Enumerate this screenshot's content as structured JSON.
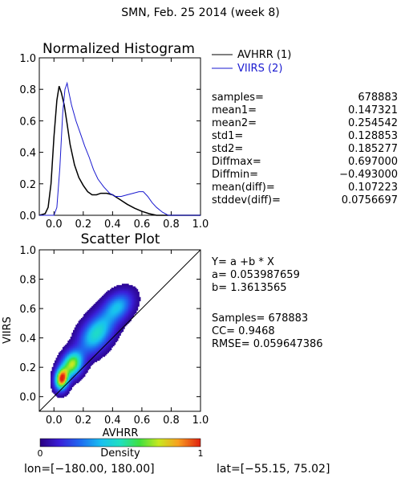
{
  "title": "SMN,  Feb. 25 2014 (week 8)",
  "colors": {
    "avhrr": "#000000",
    "viirs": "#1a1ad0",
    "text": "#000000"
  },
  "chart_data": [
    {
      "type": "line",
      "title": "Normalized Histogram",
      "xlim": [
        -0.1,
        1.0
      ],
      "ylim": [
        0.0,
        1.0
      ],
      "xticks": [
        "0.0",
        "0.2",
        "0.4",
        "0.6",
        "0.8",
        "1.0"
      ],
      "yticks": [
        "0.0",
        "0.2",
        "0.4",
        "0.6",
        "0.8",
        "1.0"
      ],
      "series": [
        {
          "name": "AVHRR (1)",
          "color": "#000000",
          "points": [
            [
              -0.1,
              0.0
            ],
            [
              -0.06,
              0.01
            ],
            [
              -0.04,
              0.05
            ],
            [
              -0.02,
              0.2
            ],
            [
              0.0,
              0.5
            ],
            [
              0.02,
              0.73
            ],
            [
              0.035,
              0.82
            ],
            [
              0.05,
              0.78
            ],
            [
              0.07,
              0.7
            ],
            [
              0.09,
              0.58
            ],
            [
              0.11,
              0.45
            ],
            [
              0.14,
              0.32
            ],
            [
              0.17,
              0.24
            ],
            [
              0.2,
              0.19
            ],
            [
              0.23,
              0.15
            ],
            [
              0.26,
              0.13
            ],
            [
              0.29,
              0.13
            ],
            [
              0.32,
              0.14
            ],
            [
              0.36,
              0.14
            ],
            [
              0.4,
              0.13
            ],
            [
              0.45,
              0.1
            ],
            [
              0.5,
              0.07
            ],
            [
              0.55,
              0.045
            ],
            [
              0.6,
              0.025
            ],
            [
              0.65,
              0.01
            ],
            [
              0.7,
              0.0
            ],
            [
              1.0,
              0.0
            ]
          ]
        },
        {
          "name": "VIIRS (2)",
          "color": "#1a1ad0",
          "points": [
            [
              -0.1,
              0.0
            ],
            [
              0.0,
              0.0
            ],
            [
              0.02,
              0.05
            ],
            [
              0.04,
              0.3
            ],
            [
              0.06,
              0.65
            ],
            [
              0.075,
              0.8
            ],
            [
              0.09,
              0.84
            ],
            [
              0.1,
              0.79
            ],
            [
              0.12,
              0.7
            ],
            [
              0.15,
              0.6
            ],
            [
              0.18,
              0.52
            ],
            [
              0.21,
              0.44
            ],
            [
              0.24,
              0.37
            ],
            [
              0.27,
              0.29
            ],
            [
              0.3,
              0.23
            ],
            [
              0.34,
              0.18
            ],
            [
              0.38,
              0.14
            ],
            [
              0.42,
              0.12
            ],
            [
              0.46,
              0.12
            ],
            [
              0.5,
              0.13
            ],
            [
              0.54,
              0.14
            ],
            [
              0.58,
              0.15
            ],
            [
              0.61,
              0.15
            ],
            [
              0.64,
              0.12
            ],
            [
              0.67,
              0.08
            ],
            [
              0.7,
              0.05
            ],
            [
              0.74,
              0.02
            ],
            [
              0.78,
              0.0
            ],
            [
              1.0,
              0.0
            ]
          ]
        }
      ]
    },
    {
      "type": "scatter",
      "title": "Scatter Plot",
      "xlabel": "AVHRR",
      "ylabel": "VIIRS",
      "xlim": [
        -0.1,
        1.0
      ],
      "ylim": [
        -0.1,
        1.0
      ],
      "xticks": [
        "0.0",
        "0.2",
        "0.4",
        "0.6",
        "0.8",
        "1.0"
      ],
      "yticks": [
        "0.0",
        "0.2",
        "0.4",
        "0.6",
        "0.8",
        "1.0"
      ],
      "one_to_one_line": true,
      "density_clusters": [
        {
          "x": 0.05,
          "y": 0.12,
          "sx": 0.03,
          "sy": 0.05,
          "weight": 1.0
        },
        {
          "x": 0.12,
          "y": 0.22,
          "sx": 0.05,
          "sy": 0.06,
          "weight": 0.7
        },
        {
          "x": 0.3,
          "y": 0.42,
          "sx": 0.1,
          "sy": 0.1,
          "weight": 0.45
        },
        {
          "x": 0.45,
          "y": 0.6,
          "sx": 0.08,
          "sy": 0.07,
          "weight": 0.35
        }
      ]
    }
  ],
  "stats": [
    {
      "label": "samples=",
      "value": "678883"
    },
    {
      "label": "mean1=",
      "value": "0.147321"
    },
    {
      "label": "mean2=",
      "value": "0.254542"
    },
    {
      "label": "std1=",
      "value": "0.128853"
    },
    {
      "label": "std2=",
      "value": "0.185277"
    },
    {
      "label": "Diffmax=",
      "value": "0.697000"
    },
    {
      "label": "Diffmin=",
      "value": "−0.493000"
    },
    {
      "label": "mean(diff)=",
      "value": "0.107223"
    },
    {
      "label": "stddev(diff)=",
      "value": "0.0756697"
    }
  ],
  "regression": {
    "equation": "Y= a +b * X",
    "a": "a= 0.053987659",
    "b": "b= 1.3613565",
    "samples": "Samples= 678883",
    "cc": "CC=  0.9468",
    "rmse": "RMSE= 0.059647386"
  },
  "colorbar": {
    "label": "Density",
    "min": "0",
    "max": "1"
  },
  "footer": {
    "lon": "lon=[−180.00, 180.00]",
    "lat": "lat=[−55.15, 75.02]"
  }
}
